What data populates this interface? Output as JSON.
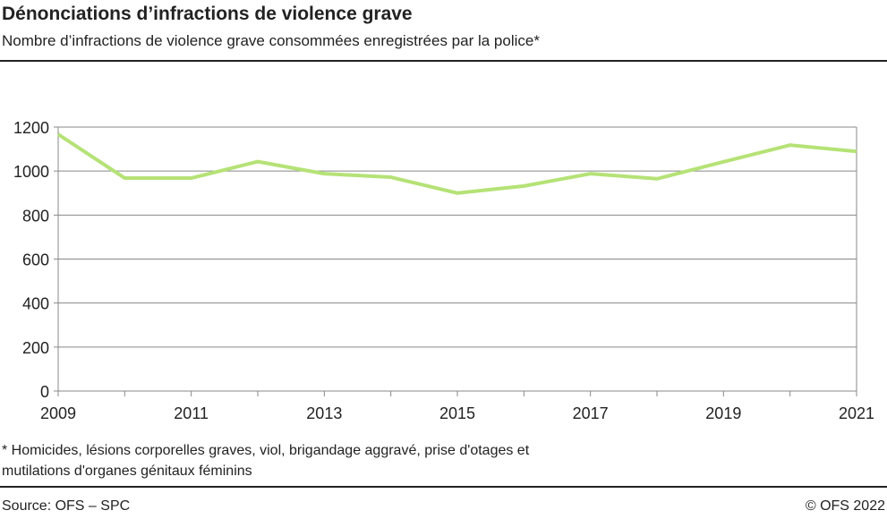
{
  "title": "Dénonciations d’infractions de violence grave",
  "subtitle": "Nombre d’infractions de violence grave consommées enregistrées par la police*",
  "footnote_line1": "* Homicides, lésions corporelles graves, viol, brigandage aggravé, prise d'otages et",
  "footnote_line2": "mutilations d'organes génitaux féminins",
  "source": "Source: OFS – SPC",
  "copyright": "© OFS 2022",
  "chart_data": {
    "type": "line",
    "x": [
      2009,
      2010,
      2011,
      2012,
      2013,
      2014,
      2015,
      2016,
      2017,
      2018,
      2019,
      2020,
      2021
    ],
    "values": [
      1167,
      968,
      968,
      1043,
      988,
      972,
      900,
      932,
      988,
      965,
      1042,
      1118,
      1089
    ],
    "xlim": [
      2009,
      2021
    ],
    "ylim": [
      0,
      1200
    ],
    "yticks": [
      0,
      200,
      400,
      600,
      800,
      1000,
      1200
    ],
    "xticklabels": [
      2009,
      2011,
      2013,
      2015,
      2017,
      2019,
      2021
    ],
    "grid": true,
    "color": "#b5e276"
  }
}
